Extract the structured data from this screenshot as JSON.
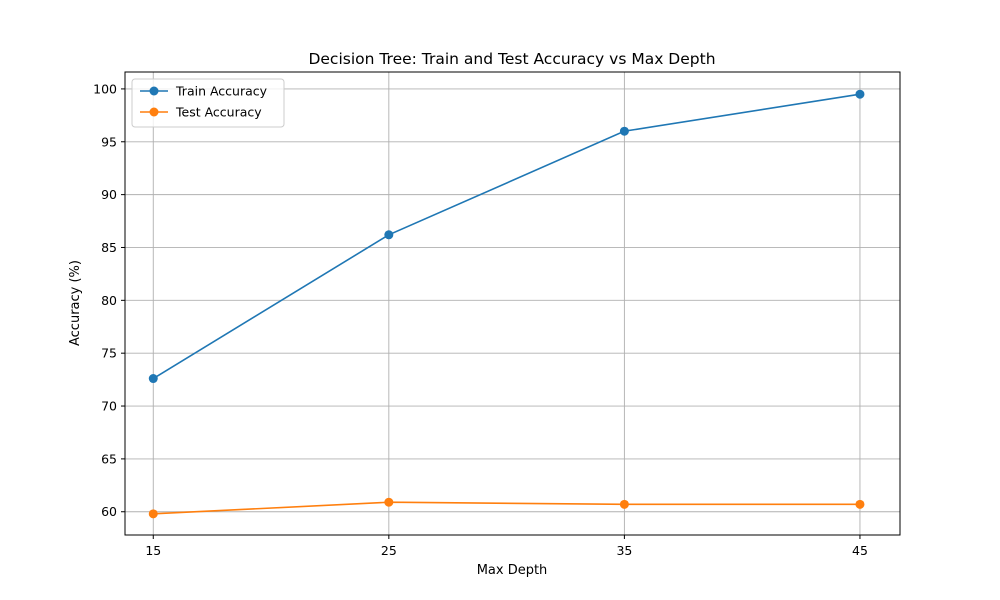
{
  "chart_data": {
    "type": "line",
    "title": "Decision Tree: Train and Test Accuracy vs Max Depth",
    "xlabel": "Max Depth",
    "ylabel": "Accuracy (%)",
    "x": [
      15,
      25,
      35,
      45
    ],
    "xticks": [
      "15",
      "25",
      "35",
      "45"
    ],
    "yticks": [
      60,
      65,
      70,
      75,
      80,
      85,
      90,
      95,
      100
    ],
    "xlim": [
      13.8,
      46.7
    ],
    "ylim": [
      57.8,
      101.6
    ],
    "grid": true,
    "legend_position": "top-left",
    "series": [
      {
        "name": "Train Accuracy",
        "values": [
          72.6,
          86.2,
          96.0,
          99.5
        ],
        "color": "#1f77b4"
      },
      {
        "name": "Test Accuracy",
        "values": [
          59.8,
          60.9,
          60.7,
          60.7
        ],
        "color": "#ff7f0e"
      }
    ]
  }
}
